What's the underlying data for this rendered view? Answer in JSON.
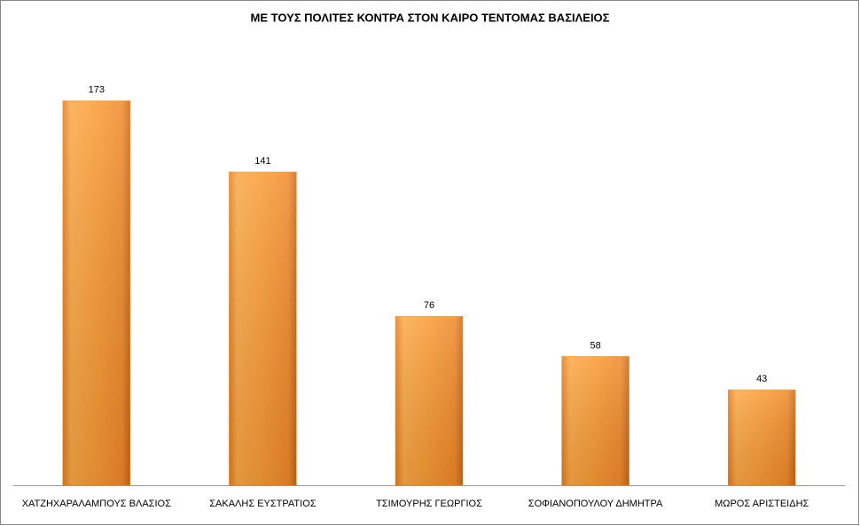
{
  "chart_data": {
    "type": "bar",
    "title": "ΜΕ ΤΟΥΣ ΠΟΛΙΤΕΣ ΚΟΝΤΡΑ ΣΤΟΝ ΚΑΙΡΟ ΤΕΝΤΟΜΑΣ ΒΑΣΙΛΕΙΟΣ",
    "categories": [
      "ΧΑΤΖΗΧΑΡΑΛΑΜΠΟΥΣ ΒΛΑΣΙΟΣ",
      "ΣΑΚΑΛΗΣ ΕΥΣΤΡΑΤΙΟΣ",
      "ΤΣΙΜΟΥΡΗΣ ΓΕΩΡΓΙΟΣ",
      "ΣΟΦΙΑΝΟΠΟΥΛΟΥ ΔΗΜΗΤΡΑ",
      "ΜΩΡΟΣ ΑΡΙΣΤΕΙΔΗΣ"
    ],
    "values": [
      173,
      141,
      76,
      58,
      43
    ],
    "color": "#f7941d",
    "ylim": [
      0,
      200
    ]
  }
}
